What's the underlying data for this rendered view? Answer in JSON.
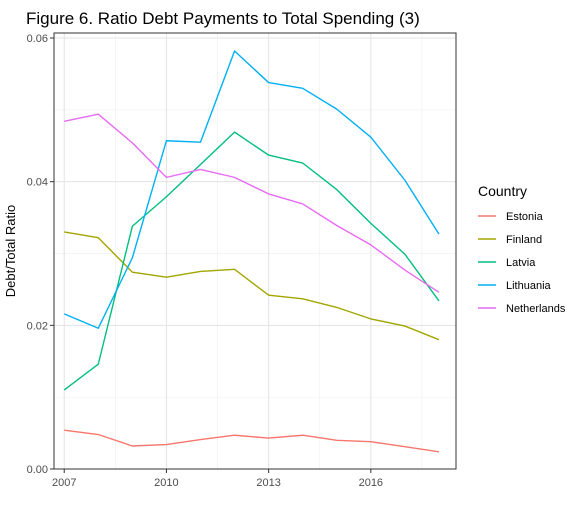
{
  "chart_data": {
    "type": "line",
    "title": "Figure 6. Ratio Debt Payments to Total Spending (3)",
    "xlabel": "",
    "ylabel": "Debt/Total Ratio",
    "x": [
      2007,
      2008,
      2009,
      2010,
      2011,
      2012,
      2013,
      2014,
      2015,
      2016,
      2017,
      2018
    ],
    "xlim": [
      2006.7,
      2018.5
    ],
    "ylim": [
      0.0,
      0.0607
    ],
    "x_ticks": [
      2007,
      2010,
      2013,
      2016
    ],
    "x_tick_labels": [
      "2007",
      "2010",
      "2013",
      "2016"
    ],
    "y_ticks": [
      0.0,
      0.02,
      0.04,
      0.06
    ],
    "y_tick_labels": [
      "0.00",
      "0.02",
      "0.04",
      "0.06"
    ],
    "x_minor_ticks": [
      2008.5,
      2011.5,
      2014.5,
      2017.5
    ],
    "y_minor_ticks": [
      0.01,
      0.03,
      0.05
    ],
    "grid": true,
    "legend": {
      "title": "Country",
      "position": "right"
    },
    "series": [
      {
        "name": "Estonia",
        "color": "#F8766D",
        "values": [
          0.0054,
          0.0048,
          0.0032,
          0.0034,
          0.0041,
          0.0047,
          0.0043,
          0.0047,
          0.004,
          0.0038,
          0.0031,
          0.0024
        ]
      },
      {
        "name": "Finland",
        "color": "#A3A500",
        "values": [
          0.033,
          0.0322,
          0.0274,
          0.0267,
          0.0275,
          0.0278,
          0.0242,
          0.0237,
          0.0225,
          0.0209,
          0.0199,
          0.018
        ]
      },
      {
        "name": "Latvia",
        "color": "#00BF7D",
        "values": [
          0.011,
          0.0146,
          0.0338,
          0.0379,
          0.0424,
          0.0469,
          0.0437,
          0.0426,
          0.0389,
          0.0342,
          0.0299,
          0.0234
        ]
      },
      {
        "name": "Lithuania",
        "color": "#00B0F6",
        "values": [
          0.0216,
          0.0196,
          0.0294,
          0.0457,
          0.0455,
          0.0582,
          0.0538,
          0.053,
          0.0501,
          0.0462,
          0.0402,
          0.0327
        ]
      },
      {
        "name": "Netherlands",
        "color": "#E76BF3",
        "values": [
          0.0484,
          0.0494,
          0.0454,
          0.0406,
          0.0417,
          0.0406,
          0.0383,
          0.0369,
          0.0339,
          0.0312,
          0.0277,
          0.0246
        ]
      }
    ]
  }
}
